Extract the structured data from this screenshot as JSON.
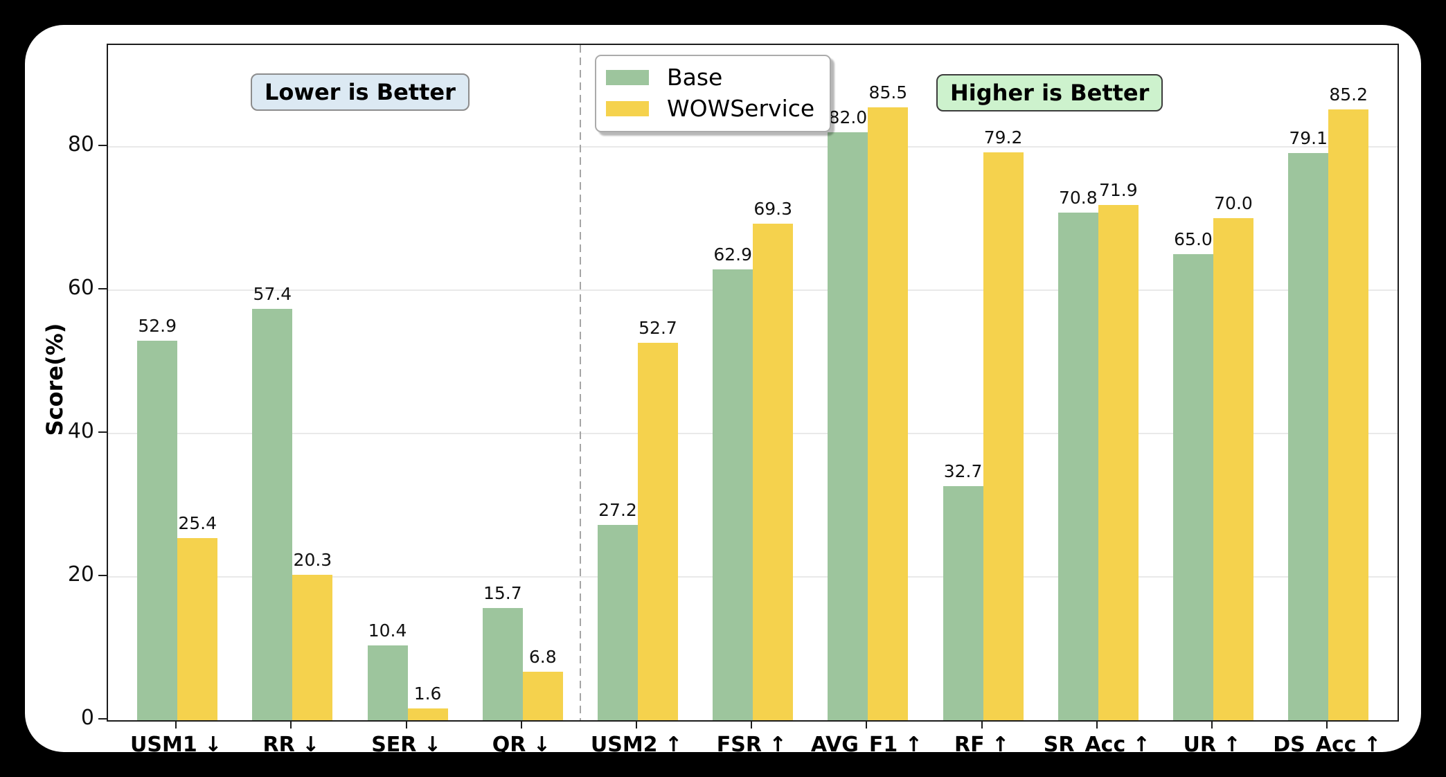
{
  "window": {
    "background_color": "#000000",
    "card_background_color": "#ffffff"
  },
  "chart_data": {
    "type": "bar",
    "title": "",
    "xlabel": "",
    "ylabel": "Score(%)",
    "ylim": [
      0,
      94.2
    ],
    "yticks": [
      "0",
      "20",
      "40",
      "60",
      "80"
    ],
    "grid": true,
    "grid_color": "#e9e9e9",
    "axis_color": "#1c1c1c",
    "categories": [
      "USM1 ↓",
      "RR ↓",
      "SER ↓",
      "QR ↓",
      "USM2 ↑",
      "FSR ↑",
      "AVG_F1 ↑",
      "RF ↑",
      "SR_Acc ↑",
      "UR ↑",
      "DS_Acc ↑"
    ],
    "series": [
      {
        "name": "Base",
        "color": "#9dc59d",
        "values": [
          52.9,
          57.4,
          10.4,
          15.7,
          27.2,
          62.9,
          82.0,
          32.7,
          70.8,
          65.0,
          79.1
        ],
        "labels": [
          "52.9",
          "57.4",
          "10.4",
          "15.7",
          "27.2",
          "62.9",
          "82.0",
          "32.7",
          "70.8",
          "65.0",
          "79.1"
        ]
      },
      {
        "name": "WOWService",
        "color": "#f5d24d",
        "values": [
          25.4,
          20.3,
          1.6,
          6.8,
          52.7,
          69.3,
          85.5,
          79.2,
          71.9,
          70.0,
          85.2
        ],
        "labels": [
          "25.4",
          "20.3",
          "1.6",
          "6.8",
          "52.7",
          "69.3",
          "85.5",
          "79.2",
          "71.9",
          "70.0",
          "85.2"
        ]
      }
    ],
    "legend": {
      "entries": [
        "Base",
        "WOWService"
      ],
      "position": "upper center-left"
    },
    "divider_after_category_index": 3,
    "divider_color": "#a5a5a5",
    "annotations": [
      {
        "text": "Lower is Better",
        "bg_color": "#dce9f3",
        "border_color": "#8c8c8c"
      },
      {
        "text": "Higher is Better",
        "bg_color": "#cdf2cd",
        "border_color": "#3c3c3c"
      }
    ]
  }
}
